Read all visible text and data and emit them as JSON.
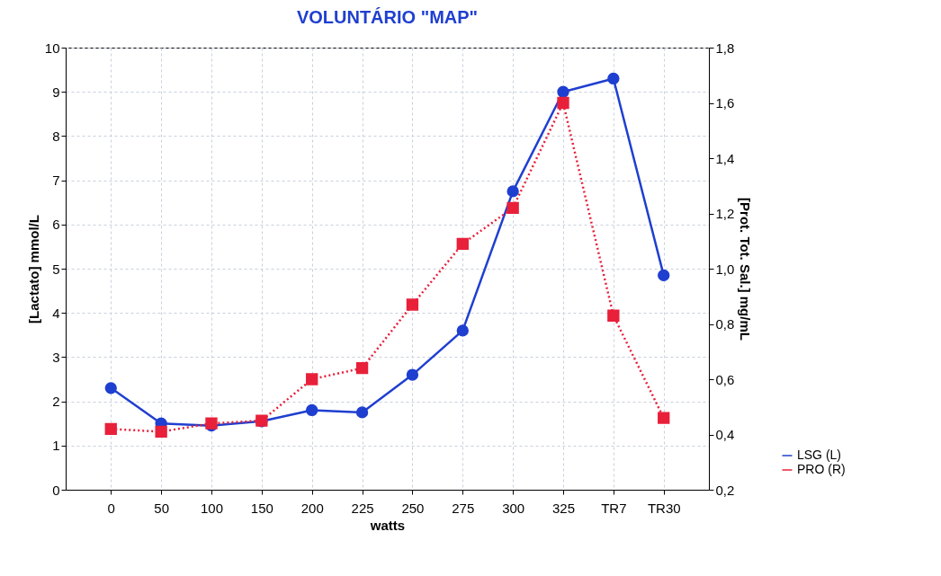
{
  "chart_data": {
    "type": "line",
    "title": "VOLUNTÁRIO  \"MAP\"",
    "xlabel": "watts",
    "ylabel": "[Lactato] mmol/L",
    "y2label": "[Prot. Tot. Sal.] mg/mL",
    "categories": [
      "0",
      "50",
      "100",
      "150",
      "200",
      "225",
      "250",
      "275",
      "300",
      "325",
      "TR7",
      "TR30"
    ],
    "series": [
      {
        "name": "LSG (L)",
        "color": "#1f3fd0",
        "marker": "circle",
        "line_style": "solid",
        "values": [
          2.3,
          1.5,
          1.45,
          1.55,
          1.8,
          1.75,
          2.6,
          3.6,
          6.75,
          9.0,
          9.3,
          4.85
        ]
      },
      {
        "name": "PRO (R)",
        "color": "#e8203a",
        "marker": "square",
        "line_style": "dotted",
        "axis": "y2",
        "values": [
          0.42,
          0.41,
          0.44,
          0.45,
          0.6,
          0.64,
          0.87,
          1.09,
          1.22,
          1.6,
          0.83,
          0.46
        ]
      }
    ],
    "ylim": [
      0,
      10
    ],
    "yticks": [
      0,
      1,
      2,
      3,
      4,
      5,
      6,
      7,
      8,
      9,
      10
    ],
    "y2lim": [
      0.2,
      1.8
    ],
    "y2ticks": [
      {
        "value": 0.2,
        "label": "0,2"
      },
      {
        "value": 0.4,
        "label": "0,4"
      },
      {
        "value": 0.6,
        "label": "0,6"
      },
      {
        "value": 0.8,
        "label": "0,8"
      },
      {
        "value": 1.0,
        "label": "1,0"
      },
      {
        "value": 1.2,
        "label": "1,2"
      },
      {
        "value": 1.4,
        "label": "1,4"
      },
      {
        "value": 1.6,
        "label": "1,6"
      },
      {
        "value": 1.8,
        "label": "1,8"
      }
    ],
    "grid": true,
    "legend": "bottom right"
  }
}
